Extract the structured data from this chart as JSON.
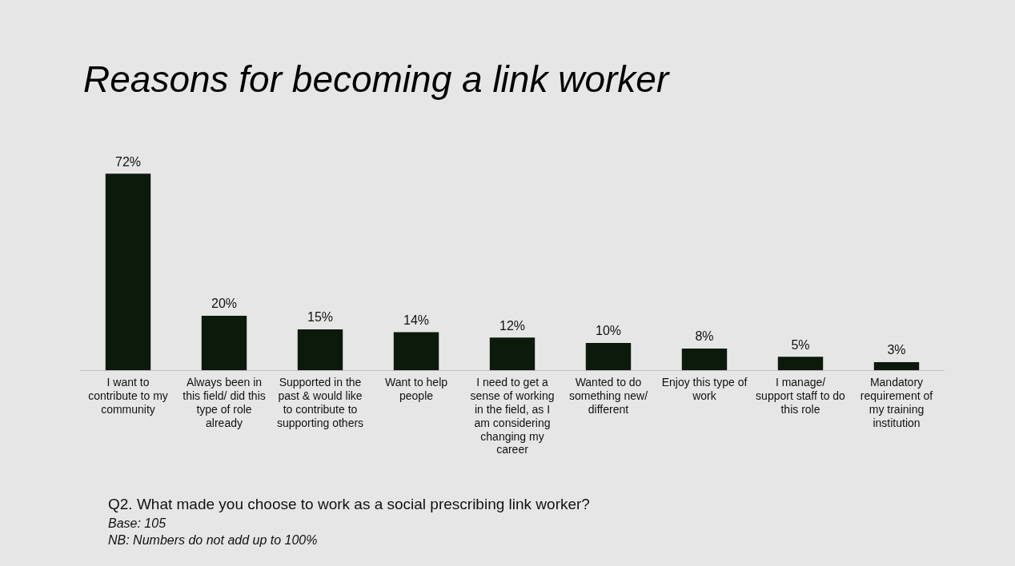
{
  "chart_data": {
    "type": "bar",
    "title": "Reasons for becoming a link worker",
    "categories": [
      "I want to contribute to my community",
      "Always been in this field/ did this type of role already",
      "Supported in the past & would like to contribute to supporting others",
      "Want to help people",
      "I need to get a sense of working in the field, as I am considering changing my career",
      "Wanted to do something new/ different",
      "Enjoy this type of work",
      "I manage/ support staff to do this role",
      "Mandatory requirement of my training institution"
    ],
    "values": [
      72,
      20,
      15,
      14,
      12,
      10,
      8,
      5,
      3
    ],
    "value_labels": [
      "72%",
      "20%",
      "15%",
      "14%",
      "12%",
      "10%",
      "8%",
      "5%",
      "3%"
    ],
    "color": "#0b1a0b",
    "grid": false,
    "legend": false,
    "annotations": [
      "Q2. What made you choose to work as a social prescribing link worker?",
      "Base: 105",
      "NB: Numbers do not add up to 100%"
    ]
  }
}
